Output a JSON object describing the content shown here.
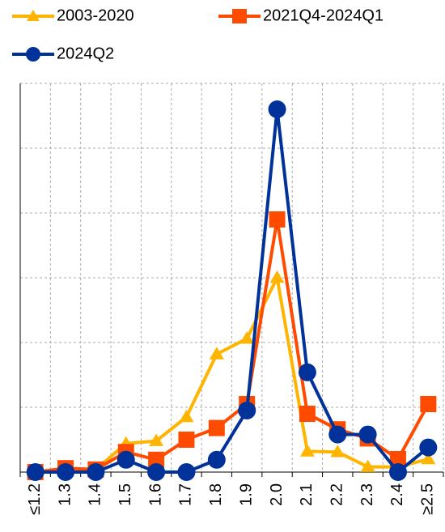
{
  "chart_data": {
    "type": "line",
    "categories": [
      "≤1.2",
      "1.3",
      "1.4",
      "1.5",
      "1.6",
      "1.7",
      "1.8",
      "1.9",
      "2.0",
      "2.1",
      "2.2",
      "2.3",
      "2.4",
      "≥2.5"
    ],
    "series": [
      {
        "name": "2003-2020",
        "color": "#ffb400",
        "marker": "triangle",
        "values": [
          0,
          0.2,
          0.4,
          4.4,
          4.8,
          8.5,
          18.2,
          20.6,
          30,
          3.2,
          3.1,
          0.8,
          0.8,
          2.0
        ]
      },
      {
        "name": "2021Q4-2024Q1",
        "color": "#ff4b00",
        "marker": "square",
        "values": [
          0,
          0.6,
          0.4,
          3.1,
          1.9,
          5,
          6.8,
          10.5,
          39,
          9,
          6.6,
          5.2,
          2,
          10.5
        ]
      },
      {
        "name": "2024Q2",
        "color": "#003299",
        "marker": "circle",
        "values": [
          0,
          0,
          0,
          1.9,
          0,
          0,
          1.9,
          9.5,
          56,
          15.4,
          5.8,
          5.8,
          0,
          3.8
        ]
      }
    ],
    "ylim": [
      0,
      60
    ],
    "yticks": [
      0,
      10,
      20,
      30,
      40,
      50,
      60
    ],
    "grid": true
  }
}
